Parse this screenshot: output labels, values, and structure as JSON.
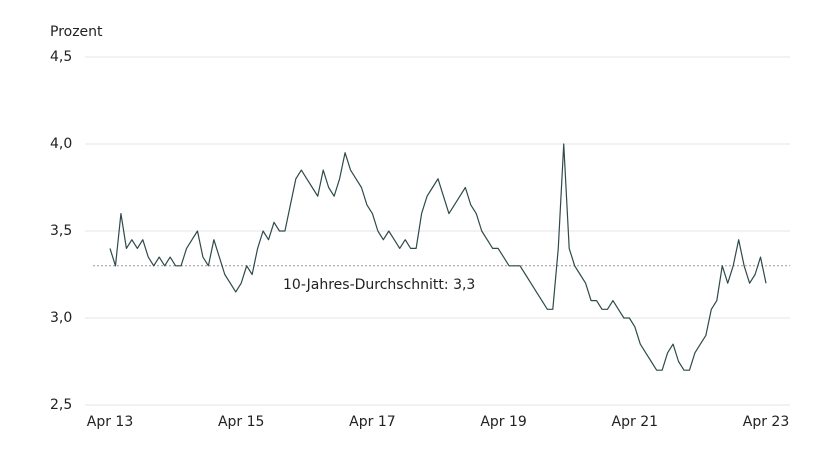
{
  "chart_data": {
    "type": "line",
    "y_axis_label": "Prozent",
    "x": [
      "2013-04",
      "2013-05",
      "2013-06",
      "2013-07",
      "2013-08",
      "2013-09",
      "2013-10",
      "2013-11",
      "2013-12",
      "2014-01",
      "2014-02",
      "2014-03",
      "2014-04",
      "2014-05",
      "2014-06",
      "2014-07",
      "2014-08",
      "2014-09",
      "2014-10",
      "2014-11",
      "2014-12",
      "2015-01",
      "2015-02",
      "2015-03",
      "2015-04",
      "2015-05",
      "2015-06",
      "2015-07",
      "2015-08",
      "2015-09",
      "2015-10",
      "2015-11",
      "2015-12",
      "2016-01",
      "2016-02",
      "2016-03",
      "2016-04",
      "2016-05",
      "2016-06",
      "2016-07",
      "2016-08",
      "2016-09",
      "2016-10",
      "2016-11",
      "2016-12",
      "2017-01",
      "2017-02",
      "2017-03",
      "2017-04",
      "2017-05",
      "2017-06",
      "2017-07",
      "2017-08",
      "2017-09",
      "2017-10",
      "2017-11",
      "2017-12",
      "2018-01",
      "2018-02",
      "2018-03",
      "2018-04",
      "2018-05",
      "2018-06",
      "2018-07",
      "2018-08",
      "2018-09",
      "2018-10",
      "2018-11",
      "2018-12",
      "2019-01",
      "2019-02",
      "2019-03",
      "2019-04",
      "2019-05",
      "2019-06",
      "2019-07",
      "2019-08",
      "2019-09",
      "2019-10",
      "2019-11",
      "2019-12",
      "2020-01",
      "2020-02",
      "2020-03",
      "2020-04",
      "2020-05",
      "2020-06",
      "2020-07",
      "2020-08",
      "2020-09",
      "2020-10",
      "2020-11",
      "2020-12",
      "2021-01",
      "2021-02",
      "2021-03",
      "2021-04",
      "2021-05",
      "2021-06",
      "2021-07",
      "2021-08",
      "2021-09",
      "2021-10",
      "2021-11",
      "2021-12",
      "2022-01",
      "2022-02",
      "2022-03",
      "2022-04",
      "2022-05",
      "2022-06",
      "2022-07",
      "2022-08",
      "2022-09",
      "2022-10",
      "2022-11",
      "2022-12",
      "2023-01",
      "2023-02",
      "2023-03",
      "2023-04"
    ],
    "series": [
      {
        "color": "#2f4a4a",
        "values": [
          3.4,
          3.3,
          3.6,
          3.4,
          3.45,
          3.4,
          3.45,
          3.35,
          3.3,
          3.35,
          3.3,
          3.35,
          3.3,
          3.3,
          3.4,
          3.45,
          3.5,
          3.35,
          3.3,
          3.45,
          3.35,
          3.25,
          3.2,
          3.15,
          3.2,
          3.3,
          3.25,
          3.4,
          3.5,
          3.45,
          3.55,
          3.5,
          3.5,
          3.65,
          3.8,
          3.85,
          3.8,
          3.75,
          3.7,
          3.85,
          3.75,
          3.7,
          3.8,
          3.95,
          3.85,
          3.8,
          3.75,
          3.65,
          3.6,
          3.5,
          3.45,
          3.5,
          3.45,
          3.4,
          3.45,
          3.4,
          3.4,
          3.6,
          3.7,
          3.75,
          3.8,
          3.7,
          3.6,
          3.65,
          3.7,
          3.75,
          3.65,
          3.6,
          3.5,
          3.45,
          3.4,
          3.4,
          3.35,
          3.3,
          3.3,
          3.3,
          3.25,
          3.2,
          3.15,
          3.1,
          3.05,
          3.05,
          3.4,
          4.0,
          3.4,
          3.3,
          3.25,
          3.2,
          3.1,
          3.1,
          3.05,
          3.05,
          3.1,
          3.05,
          3.0,
          3.0,
          2.95,
          2.85,
          2.8,
          2.75,
          2.7,
          2.7,
          2.8,
          2.85,
          2.75,
          2.7,
          2.7,
          2.8,
          2.85,
          2.9,
          3.05,
          3.1,
          3.3,
          3.2,
          3.3,
          3.45,
          3.3,
          3.2,
          3.25,
          3.35,
          3.2
        ]
      }
    ],
    "xlim": [
      "2013-04",
      "2023-04"
    ],
    "xticks": [
      {
        "value": "2013-04",
        "label": "Apr 13"
      },
      {
        "value": "2015-04",
        "label": "Apr 15"
      },
      {
        "value": "2017-04",
        "label": "Apr 17"
      },
      {
        "value": "2019-04",
        "label": "Apr 19"
      },
      {
        "value": "2021-04",
        "label": "Apr 21"
      },
      {
        "value": "2023-04",
        "label": "Apr 23"
      }
    ],
    "ylim": [
      2.5,
      4.5
    ],
    "yticks": [
      {
        "value": 2.5,
        "label": "2,5"
      },
      {
        "value": 3,
        "label": "3,0"
      },
      {
        "value": 3.5,
        "label": "3,5"
      },
      {
        "value": 4,
        "label": "4,0"
      },
      {
        "value": 4.5,
        "label": "4,5"
      }
    ],
    "grid": true,
    "reference_line": {
      "value": 3.3,
      "label": "10-Jahres-Durchschnitt: 3,3",
      "color": "#999999"
    }
  }
}
